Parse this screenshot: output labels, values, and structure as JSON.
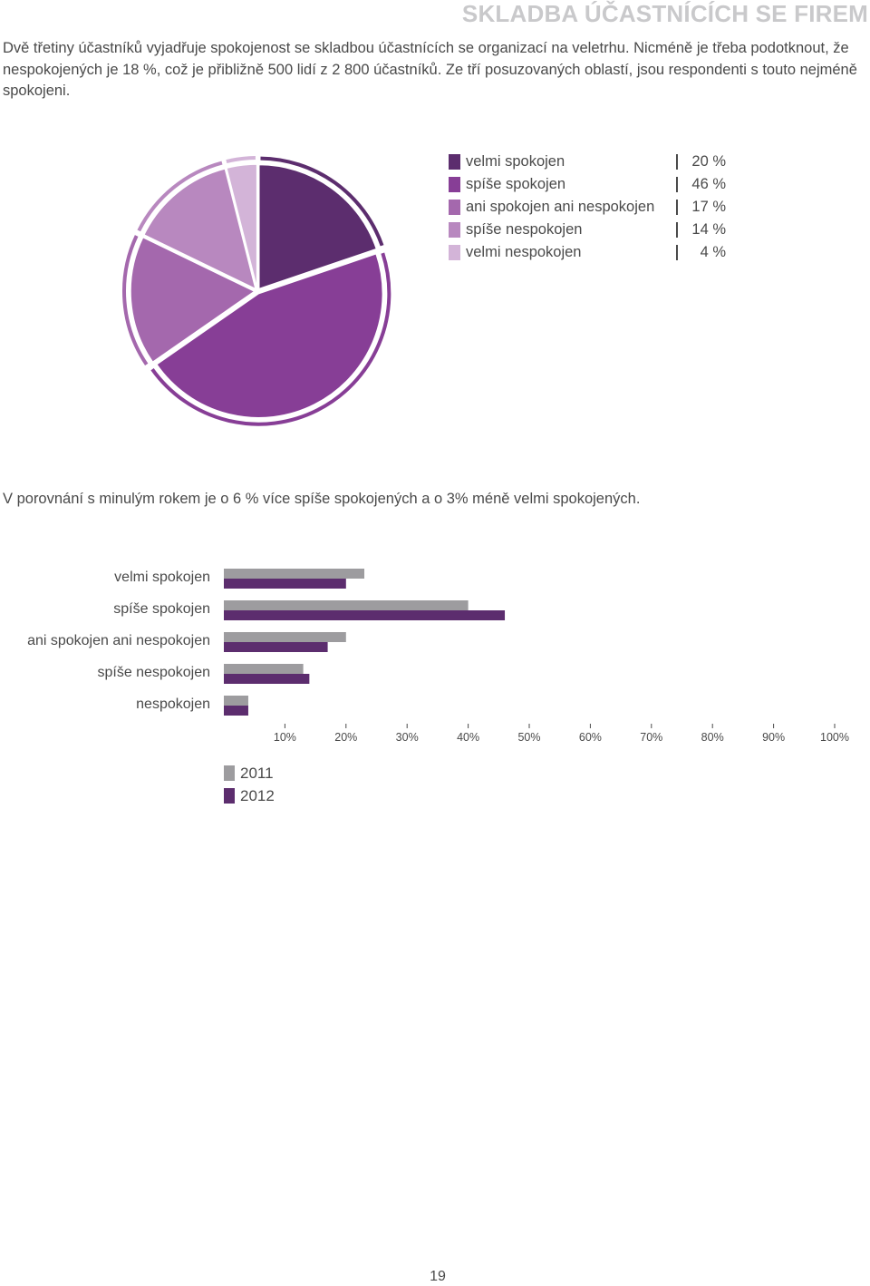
{
  "header": {
    "section_title": "SKLADBA ÚČASTNÍCÍCH SE FIREM"
  },
  "intro_text": "Dvě třetiny účastníků vyjadřuje spokojenost se skladbou účastnících se organizací na veletrhu. Nicméně je třeba podotknout, že nespokojených je 18 %, což je přibližně 500 lidí z 2 800 účastníků. Ze tří posuzovaných oblastí, jsou respondenti s touto nejméně spokojeni.",
  "comparison_text": "V porovnání s minulým rokem je o 6 % více spíše spokojených a o 3% méně velmi spokojených.",
  "page_number": "19",
  "chart_data": [
    {
      "type": "pie",
      "slices": [
        {
          "label": "velmi spokojen",
          "value": 20,
          "value_label": "20 %",
          "color": "#5c2d6e"
        },
        {
          "label": "spíše spokojen",
          "value": 46,
          "value_label": "46 %",
          "color": "#873e96"
        },
        {
          "label": "ani spokojen ani nespokojen",
          "value": 17,
          "value_label": "17 %",
          "color": "#a468ad"
        },
        {
          "label": "spíše nespokojen",
          "value": 14,
          "value_label": "14 %",
          "color": "#b888bf"
        },
        {
          "label": "velmi nespokojen",
          "value": 4,
          "value_label": "4 %",
          "color": "#d3b4d8"
        }
      ],
      "legend_position": "right"
    },
    {
      "type": "bar",
      "orientation": "horizontal",
      "categories": [
        "velmi spokojen",
        "spíše spokojen",
        "ani spokojen ani nespokojen",
        "spíše nespokojen",
        "nespokojen"
      ],
      "series": [
        {
          "name": "2011",
          "values": [
            23,
            40,
            20,
            13,
            4
          ],
          "color": "#9d9c9f"
        },
        {
          "name": "2012",
          "values": [
            20,
            46,
            17,
            14,
            4
          ],
          "color": "#5c2d6e"
        }
      ],
      "xlim": [
        0,
        100
      ],
      "xticks": [
        "10%",
        "20%",
        "30%",
        "40%",
        "50%",
        "60%",
        "70%",
        "80%",
        "90%",
        "100%"
      ],
      "legend_position": "bottom-left"
    }
  ]
}
